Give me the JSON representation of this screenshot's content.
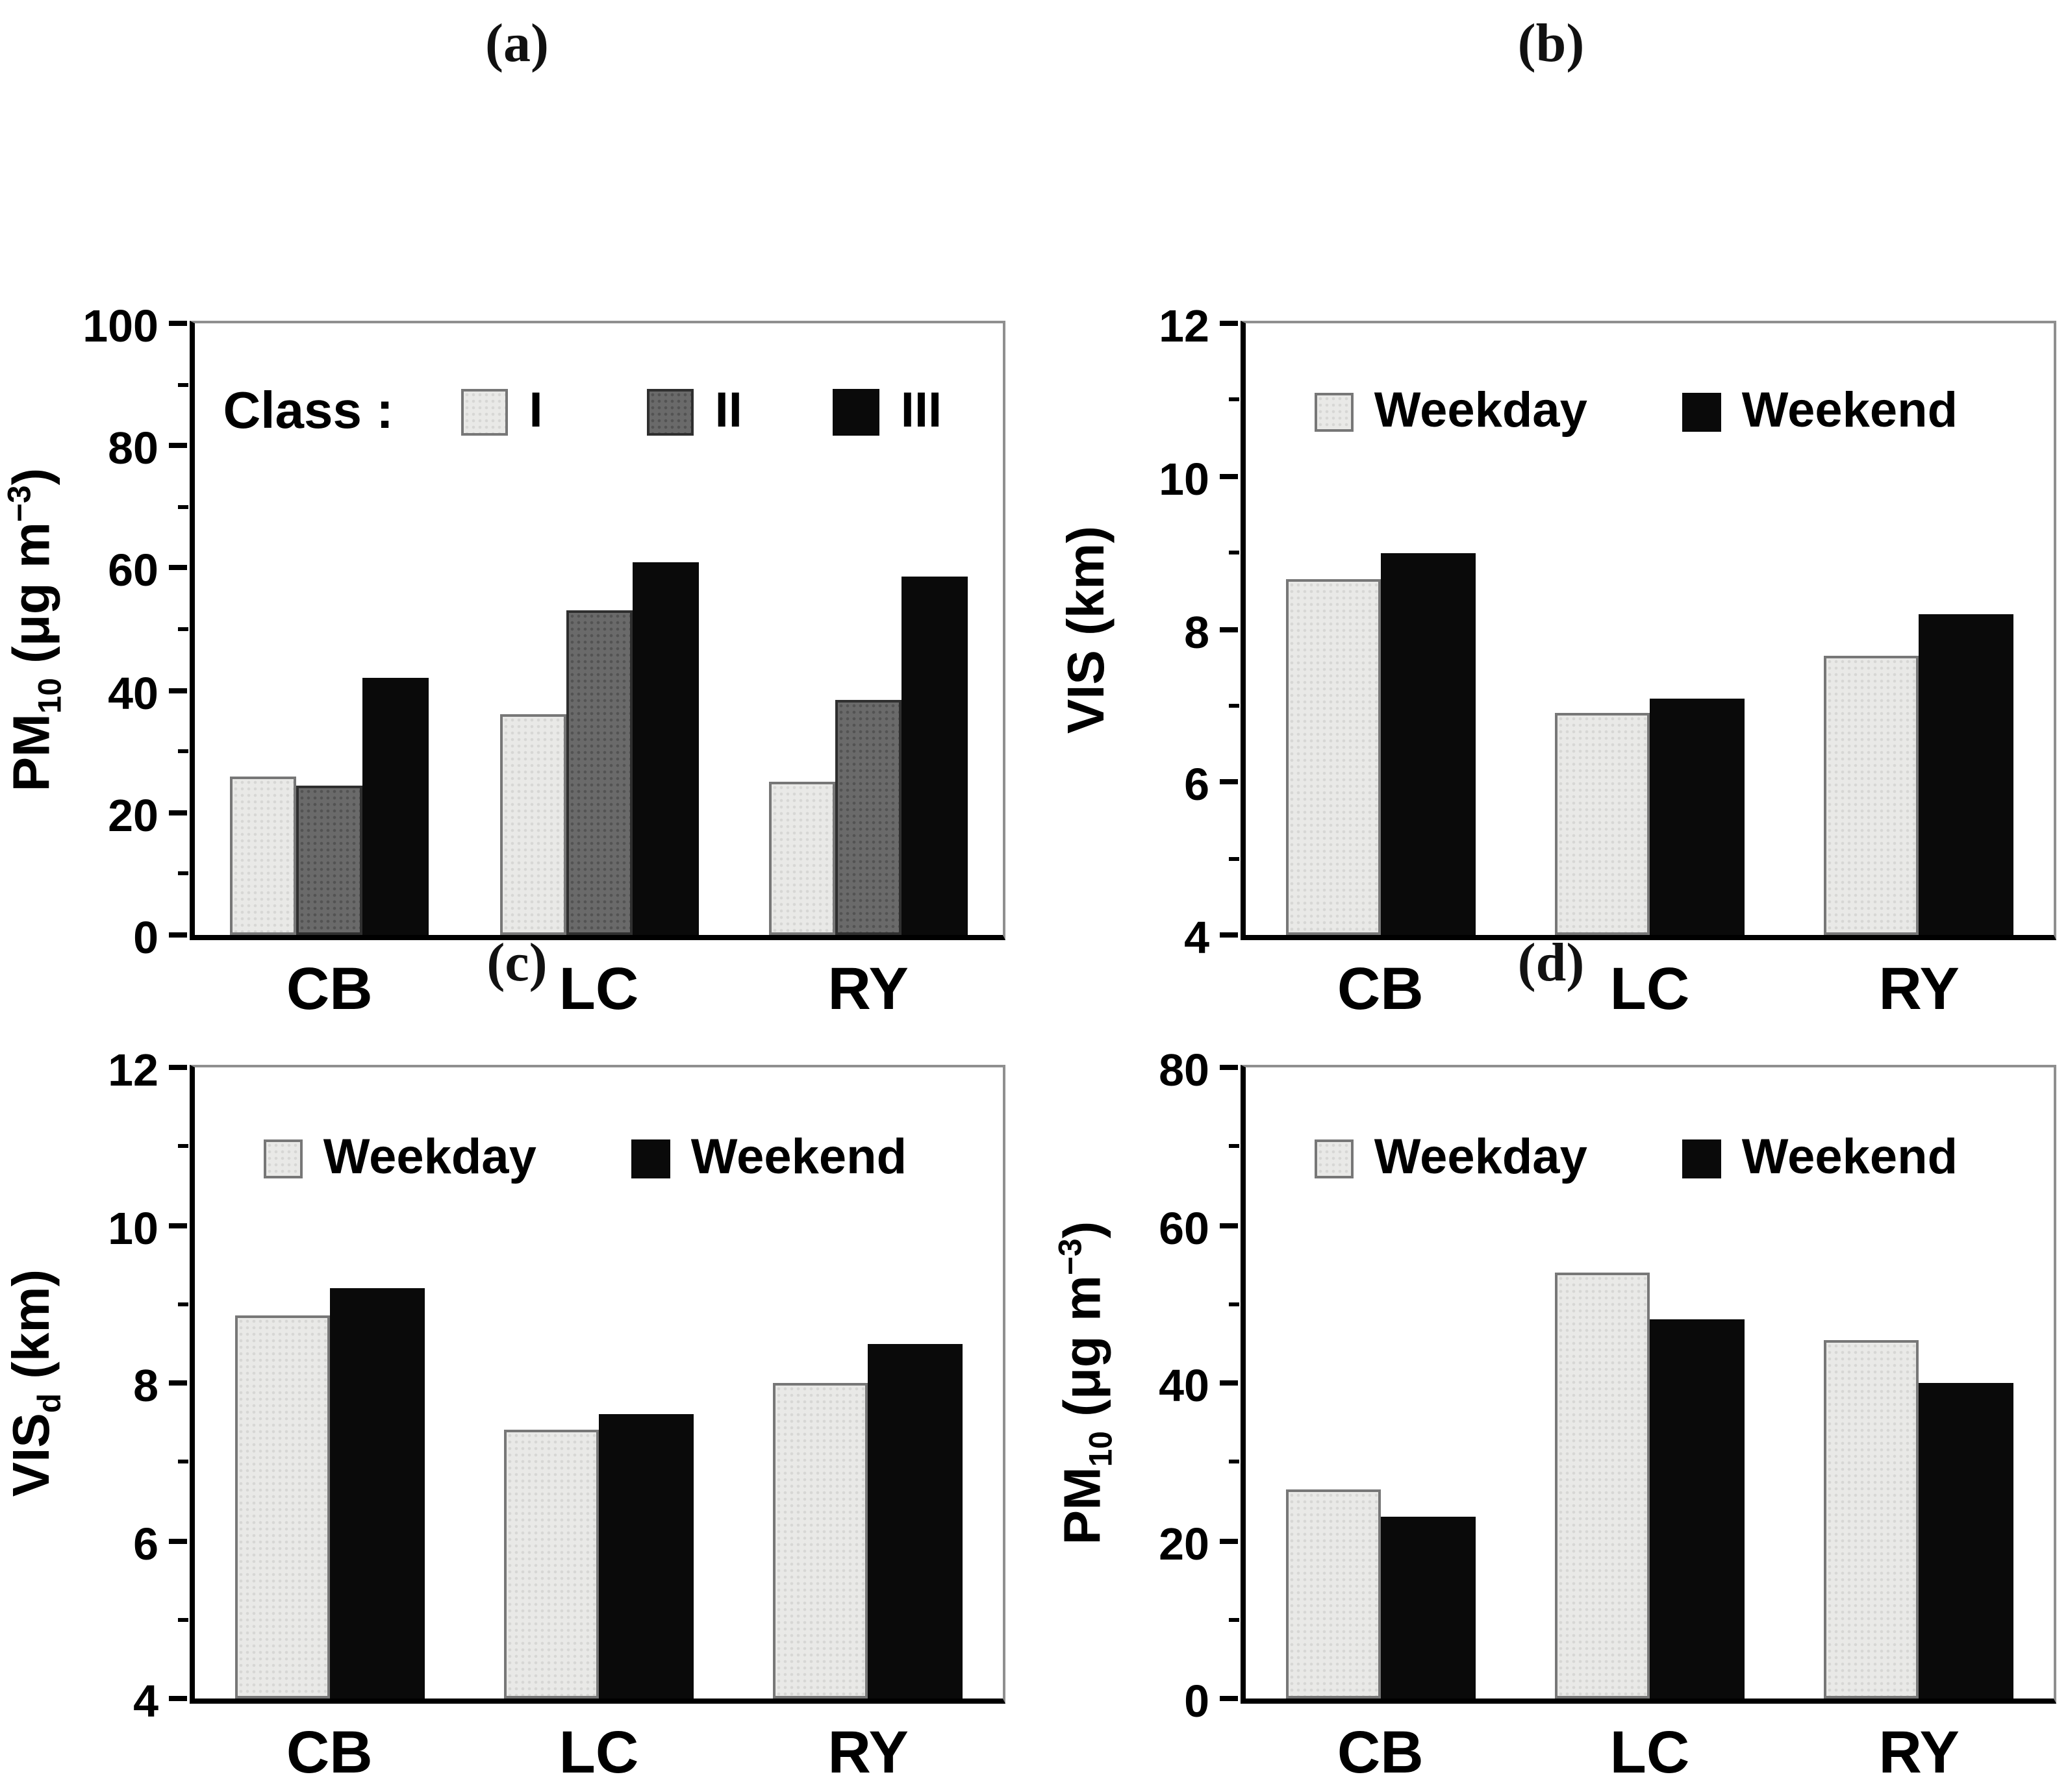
{
  "figure": {
    "background": "#ffffff",
    "description": "Four-panel bar chart figure comparing PM10 and visibility statistics at three sites"
  },
  "colors": {
    "axis": "#000000",
    "frame": "#8f8f8f",
    "text": "#000000",
    "swatches": {
      "light": {
        "fill": "#e9e9e7",
        "border": "#777777"
      },
      "mid": {
        "fill": "#6a6a6a",
        "border": "#2f2f2f"
      },
      "dark": {
        "fill": "#0a0a0a",
        "border": "#0a0a0a"
      }
    }
  },
  "chart_data": [
    {
      "type": "bar",
      "panel": "(a)",
      "ylabel_text": "PM10 (ug m-3)",
      "ylabel_segments": [
        {
          "t": "PM"
        },
        {
          "sub": "10"
        },
        {
          "t": " (μg m"
        },
        {
          "sup": "−3"
        },
        {
          "t": ")"
        }
      ],
      "ylim": [
        0,
        100
      ],
      "yticks": [
        0,
        20,
        40,
        60,
        80,
        100
      ],
      "yticks_minor": [
        10,
        30,
        50,
        70,
        90
      ],
      "categories": [
        "CB",
        "LC",
        "RY"
      ],
      "legend_prefix": "Class :",
      "series": [
        {
          "name": "I",
          "swatch": "light",
          "values": [
            26,
            36,
            25
          ]
        },
        {
          "name": "II",
          "swatch": "mid",
          "values": [
            24.5,
            53,
            38.5
          ]
        },
        {
          "name": "III",
          "swatch": "dark",
          "values": [
            42,
            61,
            58.5
          ]
        }
      ]
    },
    {
      "type": "bar",
      "panel": "(b)",
      "ylabel_text": "VIS (km)",
      "ylabel_segments": [
        {
          "t": "VIS (km)"
        }
      ],
      "ylim": [
        4,
        12
      ],
      "yticks": [
        4,
        6,
        8,
        10,
        12
      ],
      "yticks_minor": [
        5,
        7,
        9,
        11
      ],
      "categories": [
        "CB",
        "LC",
        "RY"
      ],
      "legend_prefix": "",
      "series": [
        {
          "name": "Weekday",
          "swatch": "light",
          "values": [
            8.65,
            6.9,
            7.65
          ]
        },
        {
          "name": "Weekend",
          "swatch": "dark",
          "values": [
            9.0,
            7.1,
            8.2
          ]
        }
      ]
    },
    {
      "type": "bar",
      "panel": "(c)",
      "ylabel_text": "VISd (km)",
      "ylabel_segments": [
        {
          "t": "VIS"
        },
        {
          "sub": "d"
        },
        {
          "t": " (km)"
        }
      ],
      "ylim": [
        4,
        12
      ],
      "yticks": [
        4,
        6,
        8,
        10,
        12
      ],
      "yticks_minor": [
        5,
        7,
        9,
        11
      ],
      "categories": [
        "CB",
        "LC",
        "RY"
      ],
      "legend_prefix": "",
      "series": [
        {
          "name": "Weekday",
          "swatch": "light",
          "values": [
            8.85,
            7.4,
            8.0
          ]
        },
        {
          "name": "Weekend",
          "swatch": "dark",
          "values": [
            9.2,
            7.6,
            8.5
          ]
        }
      ]
    },
    {
      "type": "bar",
      "panel": "(d)",
      "ylabel_text": "PM10 (ug m-3)",
      "ylabel_segments": [
        {
          "t": "PM"
        },
        {
          "sub": "10"
        },
        {
          "t": " (μg m"
        },
        {
          "sup": "−3"
        },
        {
          "t": ")"
        }
      ],
      "ylim": [
        0,
        80
      ],
      "yticks": [
        0,
        20,
        40,
        60,
        80
      ],
      "yticks_minor": [
        10,
        30,
        50,
        70
      ],
      "categories": [
        "CB",
        "LC",
        "RY"
      ],
      "legend_prefix": "",
      "series": [
        {
          "name": "Weekday",
          "swatch": "light",
          "values": [
            26.5,
            54,
            45.5
          ]
        },
        {
          "name": "Weekend",
          "swatch": "dark",
          "values": [
            23,
            48,
            40
          ]
        }
      ]
    }
  ]
}
